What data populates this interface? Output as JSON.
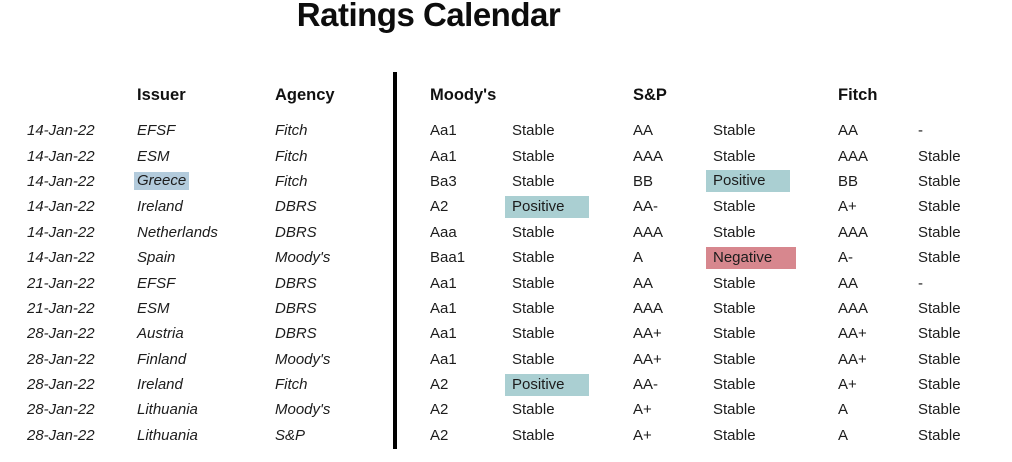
{
  "title": "Ratings Calendar",
  "colors": {
    "positive_highlight": "#aacfd2",
    "negative_highlight": "#d7878e",
    "issuer_selection": "#b3cbdc",
    "divider": "#000000"
  },
  "header": {
    "date": "",
    "issuer": "Issuer",
    "agency": "Agency",
    "moodys": "Moody's",
    "sp": "S&P",
    "fitch": "Fitch"
  },
  "rows": [
    {
      "date": "14-Jan-22",
      "issuer": "EFSF",
      "agency": "Fitch",
      "moodys_rating": "Aa1",
      "moodys_outlook": "Stable",
      "sp_rating": "AA",
      "sp_outlook": "Stable",
      "fitch_rating": "AA",
      "fitch_outlook": "-",
      "highlights": {}
    },
    {
      "date": "14-Jan-22",
      "issuer": "ESM",
      "agency": "Fitch",
      "moodys_rating": "Aa1",
      "moodys_outlook": "Stable",
      "sp_rating": "AAA",
      "sp_outlook": "Stable",
      "fitch_rating": "AAA",
      "fitch_outlook": "Stable",
      "highlights": {}
    },
    {
      "date": "14-Jan-22",
      "issuer": "Greece",
      "agency": "Fitch",
      "moodys_rating": "Ba3",
      "moodys_outlook": "Stable",
      "sp_rating": "BB",
      "sp_outlook": "Positive",
      "fitch_rating": "BB",
      "fitch_outlook": "Stable",
      "highlights": {
        "issuer": "selection",
        "sp_outlook": "positive"
      }
    },
    {
      "date": "14-Jan-22",
      "issuer": "Ireland",
      "agency": "DBRS",
      "moodys_rating": "A2",
      "moodys_outlook": "Positive",
      "sp_rating": "AA-",
      "sp_outlook": "Stable",
      "fitch_rating": "A+",
      "fitch_outlook": "Stable",
      "highlights": {
        "moodys_outlook": "positive"
      }
    },
    {
      "date": "14-Jan-22",
      "issuer": "Netherlands",
      "agency": "DBRS",
      "moodys_rating": "Aaa",
      "moodys_outlook": "Stable",
      "sp_rating": "AAA",
      "sp_outlook": "Stable",
      "fitch_rating": "AAA",
      "fitch_outlook": "Stable",
      "highlights": {}
    },
    {
      "date": "14-Jan-22",
      "issuer": "Spain",
      "agency": "Moody's",
      "moodys_rating": "Baa1",
      "moodys_outlook": "Stable",
      "sp_rating": "A",
      "sp_outlook": "Negative",
      "fitch_rating": "A-",
      "fitch_outlook": "Stable",
      "highlights": {
        "sp_outlook": "negative"
      }
    },
    {
      "date": "21-Jan-22",
      "issuer": "EFSF",
      "agency": "DBRS",
      "moodys_rating": "Aa1",
      "moodys_outlook": "Stable",
      "sp_rating": "AA",
      "sp_outlook": "Stable",
      "fitch_rating": "AA",
      "fitch_outlook": "-",
      "highlights": {}
    },
    {
      "date": "21-Jan-22",
      "issuer": "ESM",
      "agency": "DBRS",
      "moodys_rating": "Aa1",
      "moodys_outlook": "Stable",
      "sp_rating": "AAA",
      "sp_outlook": "Stable",
      "fitch_rating": "AAA",
      "fitch_outlook": "Stable",
      "highlights": {}
    },
    {
      "date": "28-Jan-22",
      "issuer": "Austria",
      "agency": "DBRS",
      "moodys_rating": "Aa1",
      "moodys_outlook": "Stable",
      "sp_rating": "AA+",
      "sp_outlook": "Stable",
      "fitch_rating": "AA+",
      "fitch_outlook": "Stable",
      "highlights": {}
    },
    {
      "date": "28-Jan-22",
      "issuer": "Finland",
      "agency": "Moody's",
      "moodys_rating": "Aa1",
      "moodys_outlook": "Stable",
      "sp_rating": "AA+",
      "sp_outlook": "Stable",
      "fitch_rating": "AA+",
      "fitch_outlook": "Stable",
      "highlights": {}
    },
    {
      "date": "28-Jan-22",
      "issuer": "Ireland",
      "agency": "Fitch",
      "moodys_rating": "A2",
      "moodys_outlook": "Positive",
      "sp_rating": "AA-",
      "sp_outlook": "Stable",
      "fitch_rating": "A+",
      "fitch_outlook": "Stable",
      "highlights": {
        "moodys_outlook": "positive"
      }
    },
    {
      "date": "28-Jan-22",
      "issuer": "Lithuania",
      "agency": "Moody's",
      "moodys_rating": "A2",
      "moodys_outlook": "Stable",
      "sp_rating": "A+",
      "sp_outlook": "Stable",
      "fitch_rating": "A",
      "fitch_outlook": "Stable",
      "highlights": {}
    },
    {
      "date": "28-Jan-22",
      "issuer": "Lithuania",
      "agency": "S&P",
      "moodys_rating": "A2",
      "moodys_outlook": "Stable",
      "sp_rating": "A+",
      "sp_outlook": "Stable",
      "fitch_rating": "A",
      "fitch_outlook": "Stable",
      "highlights": {}
    }
  ]
}
